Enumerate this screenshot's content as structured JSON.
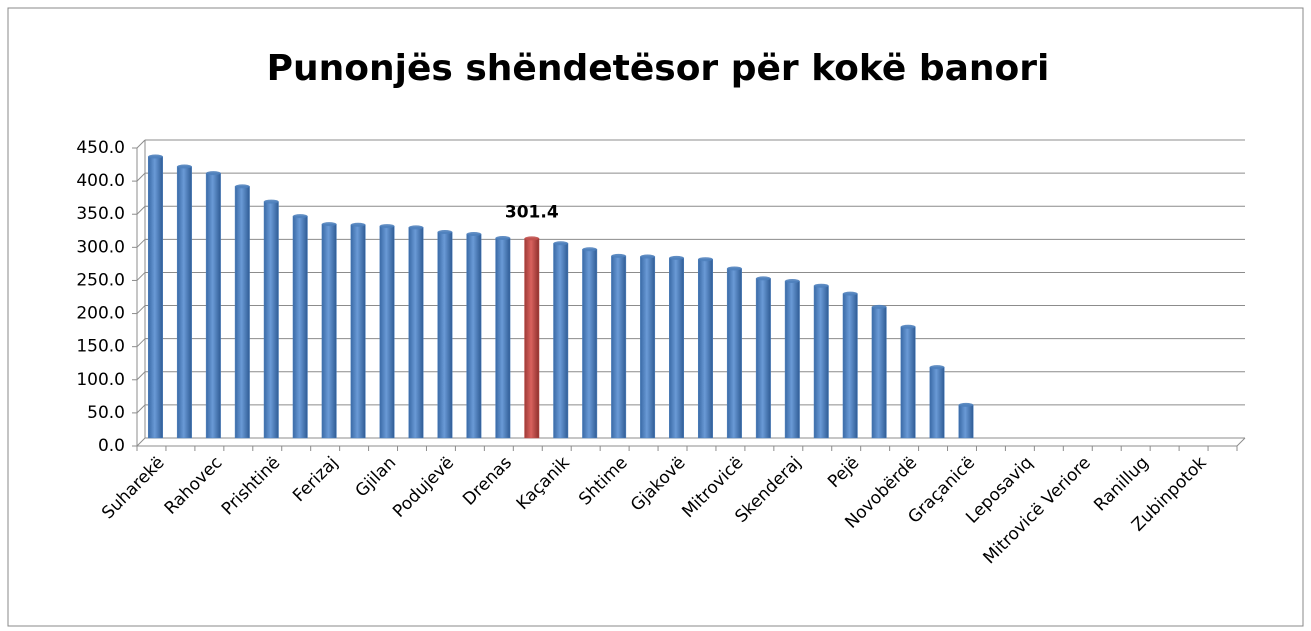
{
  "chart_data": {
    "type": "bar",
    "title": "Punonjës shëndetësor për kokë banori",
    "categories": [
      "Suharekë",
      null,
      "Rahovec",
      null,
      "Prishtinë",
      null,
      "Ferizaj",
      null,
      "Gjilan",
      null,
      "Podujevë",
      null,
      "Drenas",
      null,
      "Kaçanik",
      null,
      "Shtime",
      null,
      "Gjakovë",
      null,
      "Mitrovicë",
      null,
      "Skenderaj",
      null,
      "Pejë",
      null,
      "Novobërdë",
      null,
      "Graçanicë",
      null,
      "Leposaviq",
      null,
      "Mitrovicë Veriore",
      null,
      "Ranillug",
      null,
      "Zubinpotok",
      null
    ],
    "values": [
      425,
      410,
      400,
      380,
      357,
      335,
      323,
      322,
      320,
      318,
      311,
      308,
      302,
      301.4,
      294,
      285,
      275,
      274,
      272,
      270,
      256,
      241,
      237,
      230,
      218,
      198,
      168,
      107,
      50,
      null,
      null,
      null,
      null,
      null,
      null,
      null,
      null,
      null
    ],
    "value_labels": [
      null,
      null,
      null,
      null,
      null,
      null,
      null,
      null,
      null,
      null,
      null,
      null,
      null,
      "301.4",
      null,
      null,
      null,
      null,
      null,
      null,
      null,
      null,
      null,
      null,
      null,
      null,
      null,
      null,
      null,
      null,
      null,
      null,
      null,
      null,
      null,
      null,
      null,
      null
    ],
    "color": "#4f81bd",
    "colors": [
      "#4f81bd",
      "#4f81bd",
      "#4f81bd",
      "#4f81bd",
      "#4f81bd",
      "#4f81bd",
      "#4f81bd",
      "#4f81bd",
      "#4f81bd",
      "#4f81bd",
      "#4f81bd",
      "#4f81bd",
      "#4f81bd",
      "#c0504d",
      "#4f81bd",
      "#4f81bd",
      "#4f81bd",
      "#4f81bd",
      "#4f81bd",
      "#4f81bd",
      "#4f81bd",
      "#4f81bd",
      "#4f81bd",
      "#4f81bd",
      "#4f81bd",
      "#4f81bd",
      "#4f81bd",
      "#4f81bd",
      "#4f81bd",
      "#4f81bd",
      "#4f81bd",
      "#4f81bd",
      "#4f81bd",
      "#4f81bd",
      "#4f81bd",
      "#4f81bd",
      "#4f81bd",
      "#4f81bd"
    ],
    "ylim": [
      0,
      450
    ],
    "yticks": [
      {
        "value": 0,
        "label": "0.0"
      },
      {
        "value": 50,
        "label": "50.0"
      },
      {
        "value": 100,
        "label": "100.0"
      },
      {
        "value": 150,
        "label": "150.0"
      },
      {
        "value": 200,
        "label": "200.0"
      },
      {
        "value": 250,
        "label": "250.0"
      },
      {
        "value": 300,
        "label": "300.0"
      },
      {
        "value": 350,
        "label": "350.0"
      },
      {
        "value": 400,
        "label": "400.0"
      },
      {
        "value": 450,
        "label": "450.0"
      }
    ],
    "grid": true
  }
}
